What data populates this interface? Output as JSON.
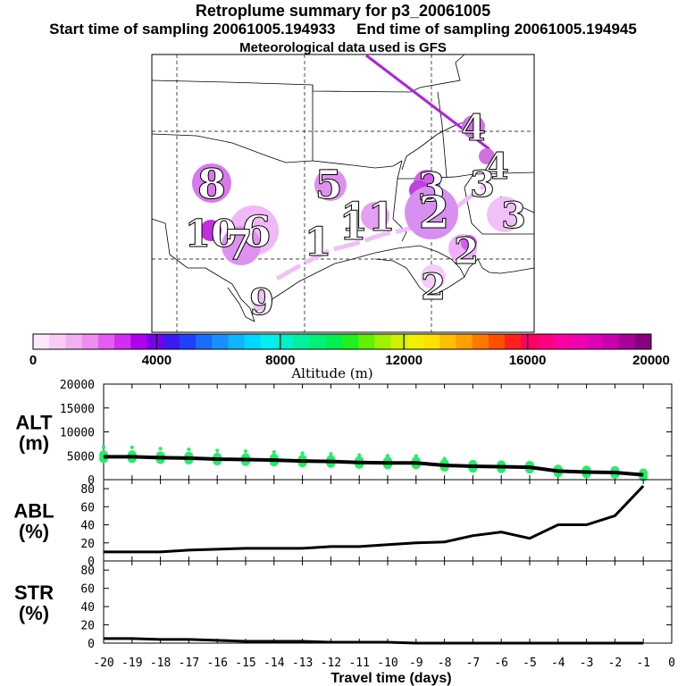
{
  "header": {
    "title": "Retroplume summary for p3_20061005",
    "start_label": "Start time of sampling 20061005.194933",
    "end_label": "End time of sampling 20061005.194945",
    "met_label": "Meteorological data used is GFS"
  },
  "colorbar": {
    "title": "Altitude (m)",
    "tick_labels": [
      "0",
      "4000",
      "8000",
      "12000",
      "16000",
      "20000"
    ],
    "colors": [
      "#fde8fb",
      "#f8cdf5",
      "#f2b0f0",
      "#ec8ef0",
      "#e45cf2",
      "#d42cf2",
      "#b000f0",
      "#7a00e8",
      "#3a1cf2",
      "#2040ff",
      "#1a6cff",
      "#1990ff",
      "#10b4ff",
      "#00d8ff",
      "#00f0f0",
      "#00f0c8",
      "#00f0a0",
      "#00f078",
      "#00f050",
      "#20f020",
      "#60f000",
      "#a0f000",
      "#d0f000",
      "#f0f000",
      "#ffe000",
      "#ffc000",
      "#ffa000",
      "#ff7800",
      "#ff5000",
      "#ff2020",
      "#ff0060",
      "#ff0080",
      "#ff00a0",
      "#f000b0",
      "#e000b8",
      "#c800b0",
      "#a80098",
      "#880080"
    ]
  },
  "map": {
    "labels": [
      {
        "text": "1",
        "color": "#a040d8"
      },
      {
        "text": "2",
        "color": "#d890f0"
      },
      {
        "text": "3",
        "color": "#e8b0f4"
      },
      {
        "text": "4",
        "color": "#d070e0"
      },
      {
        "text": "5",
        "color": "#e090f0"
      },
      {
        "text": "6",
        "color": "#f0b8f8"
      },
      {
        "text": "7",
        "color": "#d870ea"
      },
      {
        "text": "8",
        "color": "#d878ec"
      },
      {
        "text": "9",
        "color": "#f0c0f8"
      },
      {
        "text": "10",
        "color": "#c030e0"
      },
      {
        "text": "11",
        "color": "#e6a0f2"
      }
    ]
  },
  "chart_data": [
    {
      "type": "scatter",
      "panel": "ALT",
      "ylabel_line1": "ALT",
      "ylabel_line2": "(m)",
      "ylim": [
        0,
        20000
      ],
      "yticks": [
        "0",
        "5000",
        "10000",
        "15000",
        "20000"
      ],
      "x": [
        -20,
        -19,
        -18,
        -17,
        -16,
        -15,
        -14,
        -13,
        -12,
        -11,
        -10,
        -9,
        -8,
        -7,
        -6,
        -5,
        -4,
        -3,
        -2,
        -1
      ],
      "median_line": [
        4800,
        4800,
        4600,
        4500,
        4300,
        4200,
        4100,
        3900,
        3800,
        3600,
        3500,
        3500,
        3000,
        2800,
        2700,
        2600,
        1800,
        1600,
        1500,
        1000
      ],
      "scatter_color": "#22ee66",
      "line_color": "#000000"
    },
    {
      "type": "line",
      "panel": "ABL",
      "ylabel_line1": "ABL",
      "ylabel_line2": "(%)",
      "ylim": [
        0,
        90
      ],
      "yticks": [
        "0",
        "20",
        "40",
        "60",
        "80"
      ],
      "x": [
        -20,
        -19,
        -18,
        -17,
        -16,
        -15,
        -14,
        -13,
        -12,
        -11,
        -10,
        -9,
        -8,
        -7,
        -6,
        -5,
        -4,
        -3,
        -2,
        -1
      ],
      "values": [
        10,
        10,
        10,
        12,
        13,
        14,
        14,
        14,
        16,
        16,
        18,
        20,
        21,
        28,
        32,
        25,
        40,
        40,
        50,
        83
      ],
      "line_color": "#000000"
    },
    {
      "type": "line",
      "panel": "STR",
      "ylabel_line1": "STR",
      "ylabel_line2": "(%)",
      "ylim": [
        0,
        90
      ],
      "yticks": [
        "0",
        "20",
        "40",
        "60",
        "80"
      ],
      "x": [
        -20,
        -19,
        -18,
        -17,
        -16,
        -15,
        -14,
        -13,
        -12,
        -11,
        -10,
        -9,
        -8,
        -7,
        -6,
        -5,
        -4,
        -3,
        -2,
        -1
      ],
      "values": [
        5,
        5,
        4,
        4,
        3,
        2,
        2,
        2,
        1,
        1,
        1,
        0,
        0,
        0,
        0,
        0,
        0,
        0,
        0,
        0
      ],
      "line_color": "#000000",
      "xlabel": "Travel time (days)",
      "xticks": [
        "-20",
        "-19",
        "-18",
        "-17",
        "-16",
        "-15",
        "-14",
        "-13",
        "-12",
        "-11",
        "-10",
        "-9",
        "-8",
        "-7",
        "-6",
        "-5",
        "-4",
        "-3",
        "-2",
        "-1",
        "0"
      ]
    }
  ]
}
